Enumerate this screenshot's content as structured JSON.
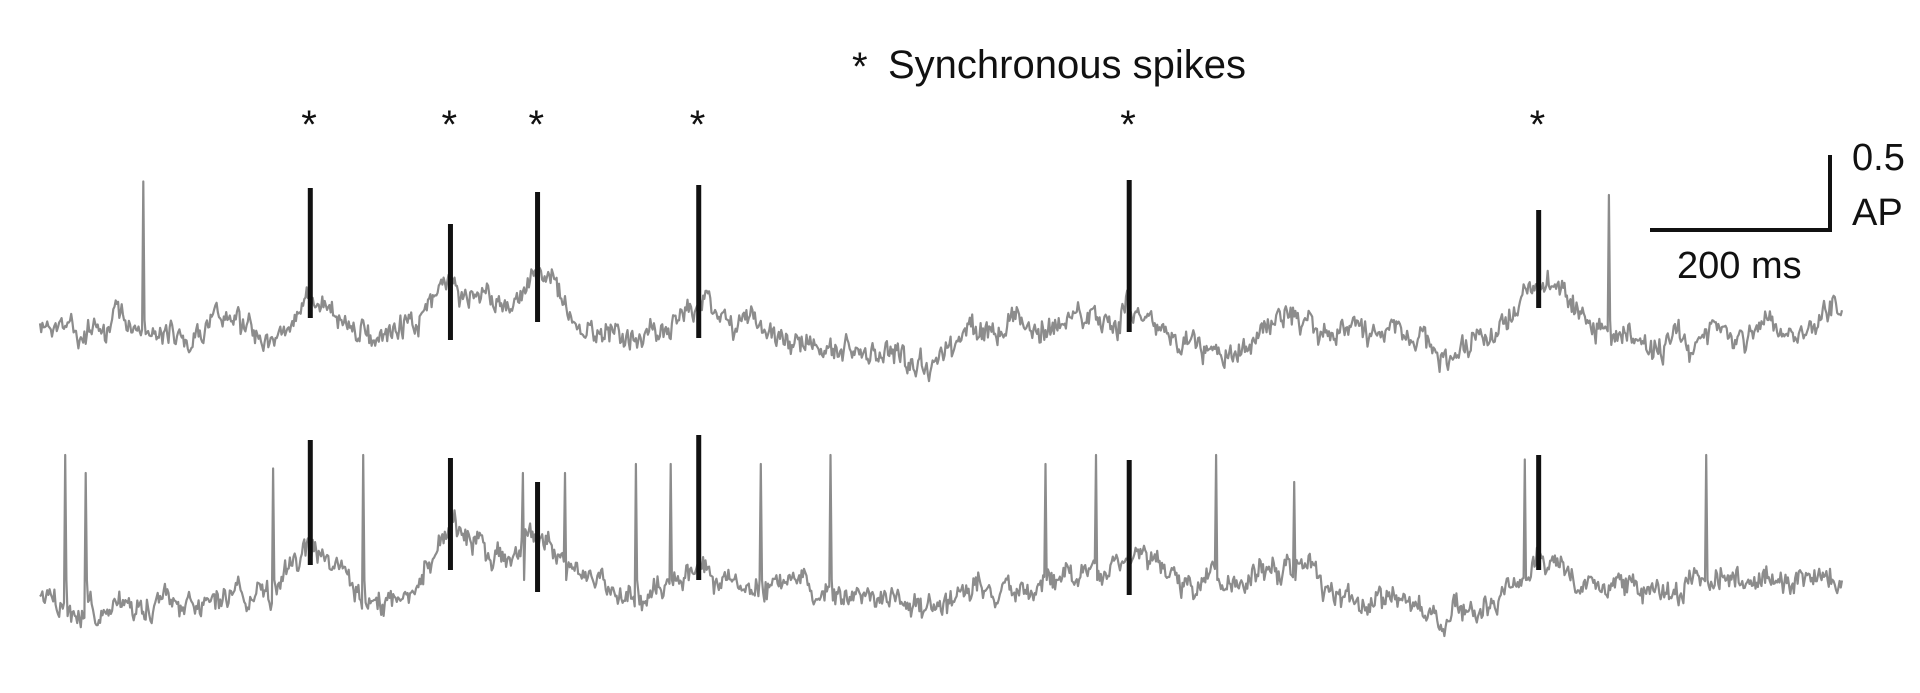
{
  "chart_data": {
    "type": "line",
    "legend": {
      "marker": "*",
      "label": "Synchronous spikes",
      "placement": "top-center"
    },
    "scale_bar": {
      "vertical_value": "0.5",
      "vertical_unit": "AP",
      "horizontal_label": "200 ms",
      "horizontal_ms": 200
    },
    "x_range_ms": [
      0,
      1800
    ],
    "synchronous_spike_times_ms": [
      270,
      410,
      497,
      658,
      1088,
      1497
    ],
    "series": [
      {
        "trace": 1,
        "trace_color": "#8c8c8c",
        "marker_color": "#111111"
      },
      {
        "trace": 2,
        "trace_color": "#8c8c8c",
        "marker_color": "#111111"
      }
    ],
    "grid": false,
    "axes_visible": false
  }
}
